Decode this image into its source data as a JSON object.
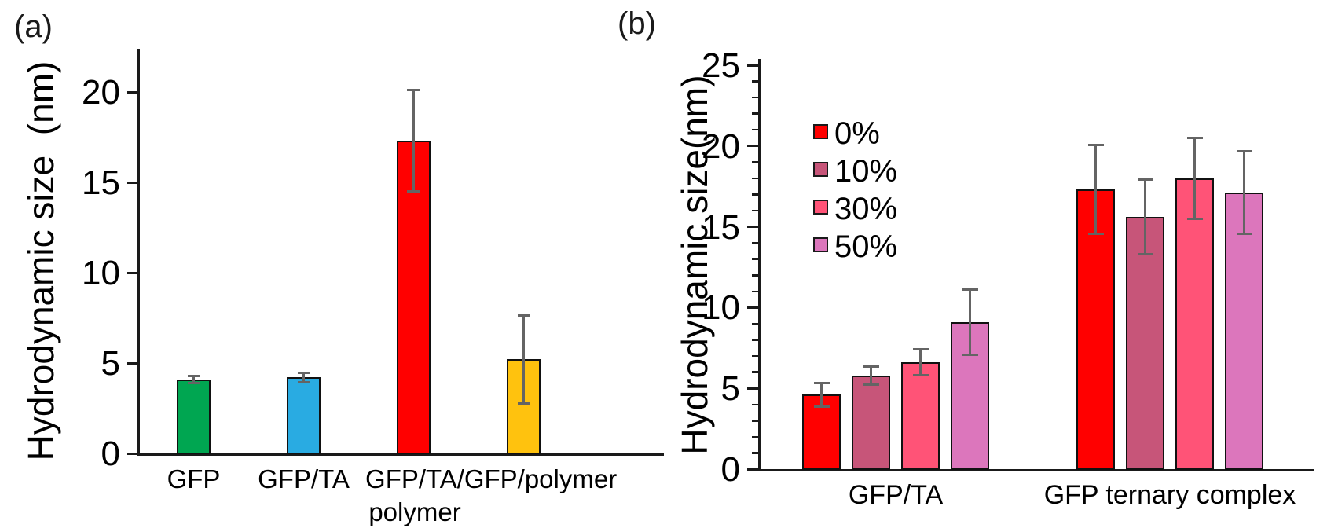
{
  "figure": {
    "panel_a": {
      "label": "(a)",
      "ylabel": "Hydrodynamic size  (nm)"
    },
    "panel_b": {
      "label": "(b)",
      "ylabel": "Hydrodynamic size(nm)"
    }
  },
  "chart_data": [
    {
      "type": "bar",
      "panel": "a",
      "title": "",
      "xlabel": "",
      "ylabel": "Hydrodynamic size (nm)",
      "categories": [
        "GFP",
        "GFP/TA",
        "GFP/TA/\npolymer",
        "GFP/polymer"
      ],
      "values": [
        4.1,
        4.2,
        17.3,
        5.2
      ],
      "errors": [
        0.2,
        0.25,
        2.8,
        2.45
      ],
      "bar_colors": [
        "#00A651",
        "#29ABE2",
        "#FF0000",
        "#FFC20E"
      ],
      "error_bar_color": "#646464",
      "ylim": [
        0,
        22
      ],
      "yticks": [
        0,
        5,
        10,
        15,
        20
      ],
      "grid": false,
      "legend": null
    },
    {
      "type": "bar",
      "panel": "b",
      "title": "",
      "xlabel": "",
      "ylabel": "Hydrodynamic size(nm)",
      "categories": [
        "GFP/TA",
        "GFP ternary complex"
      ],
      "series": [
        {
          "name": "0%",
          "color": "#FF0000",
          "values": [
            4.6,
            17.3
          ],
          "errors": [
            0.75,
            2.75
          ]
        },
        {
          "name": "10%",
          "color": "#C75579",
          "values": [
            5.8,
            15.6
          ],
          "errors": [
            0.55,
            2.3
          ]
        },
        {
          "name": "30%",
          "color": "#FF5377",
          "values": [
            6.6,
            18.0
          ],
          "errors": [
            0.8,
            2.5
          ]
        },
        {
          "name": "50%",
          "color": "#DC76BC",
          "values": [
            9.1,
            17.1
          ],
          "errors": [
            2.0,
            2.55
          ]
        }
      ],
      "error_bar_color": "#646464",
      "ylim": [
        0,
        25
      ],
      "yticks": [
        0,
        5,
        10,
        15,
        20,
        25
      ],
      "minor_tick_step": 1,
      "grid": false,
      "legend_position": "upper-left-inside"
    }
  ]
}
